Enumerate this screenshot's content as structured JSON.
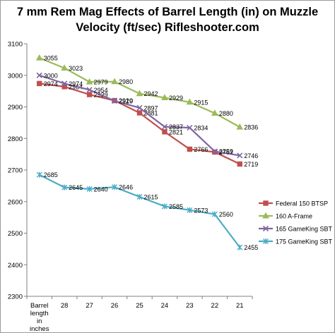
{
  "chart_data": {
    "type": "line",
    "title_line1": "7 mm Rem Mag Effects of Barrel Length (in) on Muzzle",
    "title_line2": "Velocity (ft/sec) Rifleshooter.com",
    "categories": [
      "Barrel length in inches",
      "28",
      "27",
      "26",
      "25",
      "24",
      "23",
      "22",
      "21"
    ],
    "ylim": [
      2300,
      3100
    ],
    "yticks": [
      2300,
      2400,
      2500,
      2600,
      2700,
      2800,
      2900,
      3000,
      3100
    ],
    "grid": false,
    "legend_position": "right",
    "series": [
      {
        "name": "Federal 150 BTSP",
        "color": "#c0504d",
        "marker": "square",
        "values": [
          2974,
          2964,
          2939,
          2920,
          2881,
          2821,
          2766,
          2757,
          2719
        ],
        "labels": [
          "2974",
          "2964",
          "2939",
          "2920",
          "2881",
          "2821",
          "2766",
          "2757",
          "2719"
        ]
      },
      {
        "name": "160 A-Frame",
        "color": "#9bbb59",
        "marker": "triangle",
        "values": [
          3055,
          3023,
          2979,
          2980,
          2942,
          2929,
          2915,
          2880,
          2836
        ],
        "labels": [
          "3055",
          "3023",
          "2979",
          "2980",
          "2942",
          "2929",
          "2915",
          "2880",
          "2836"
        ]
      },
      {
        "name": "165  GameKing SBT",
        "color": "#8064a2",
        "marker": "x",
        "values": [
          3000,
          2974,
          2954,
          2919,
          2897,
          2837,
          2834,
          2759,
          2746
        ],
        "labels": [
          "3000",
          "2974",
          "2954",
          "2919",
          "2897",
          "2837",
          "2834",
          "2759",
          "2746"
        ]
      },
      {
        "name": "175 GameKing SBT",
        "color": "#4bacc6",
        "marker": "star",
        "values": [
          2685,
          2645,
          2640,
          2646,
          2615,
          2585,
          2573,
          2560,
          2455
        ],
        "labels": [
          "2685",
          "2645",
          "2640",
          "2646",
          "2615",
          "2585",
          "2573",
          "2560",
          "2455"
        ]
      }
    ]
  }
}
